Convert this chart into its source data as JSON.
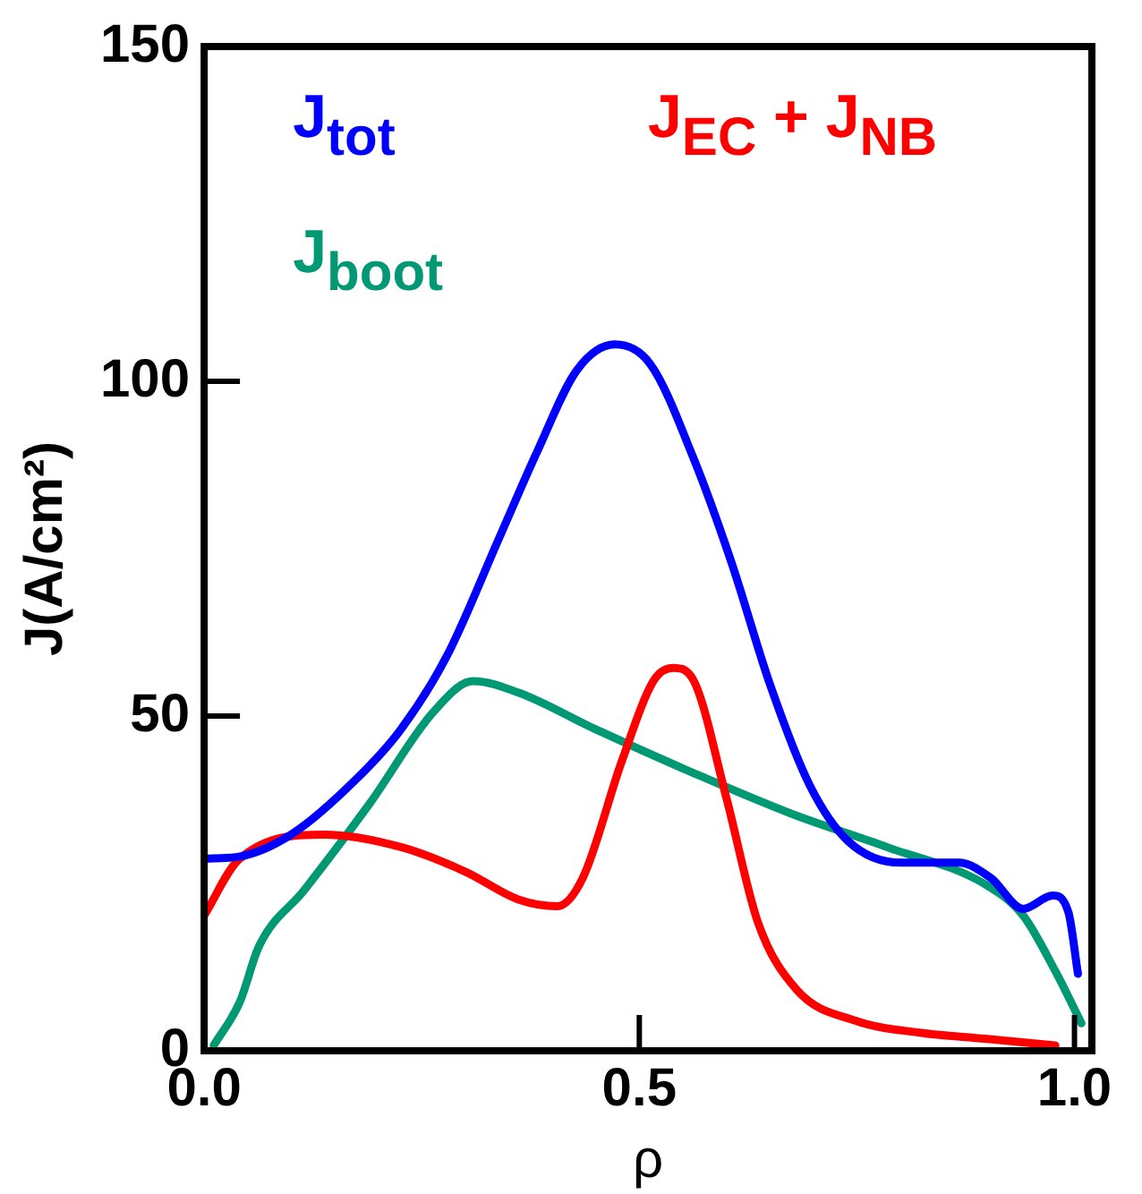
{
  "chart_data": {
    "type": "line",
    "xlabel": "ρ",
    "ylabel": "J(A/cm²)",
    "xlim": [
      0,
      1.02
    ],
    "xticks": [
      {
        "value": 0,
        "label": "0.0"
      },
      0.5,
      {
        "value": 1,
        "label": "1.0"
      }
    ],
    "ylim": [
      0,
      150
    ],
    "yticks": [
      0,
      50,
      100,
      150
    ],
    "grid": false,
    "legend": false,
    "marker": "none",
    "line_style": "solid",
    "series": [
      {
        "name": "J$_{tot}$",
        "color": "#0000ff",
        "x": [
          0,
          0.04,
          0.1,
          0.175,
          0.226,
          0.279,
          0.339,
          0.383,
          0.428,
          0.472,
          0.513,
          0.562,
          0.606,
          0.651,
          0.696,
          0.74,
          0.8,
          0.867,
          0.904,
          0.941,
          0.975,
          0.993,
          1.004
        ],
        "values": [
          28.7,
          29,
          32.3,
          40.6,
          48,
          59,
          76.6,
          89.6,
          101.6,
          105.5,
          102.5,
          88.6,
          72.9,
          54.4,
          39.6,
          31.3,
          28.1,
          28.1,
          25.8,
          21.2,
          23.2,
          20.7,
          11.5
        ]
      },
      {
        "name": "J$_{EC}$ + J$_{NB}$",
        "color": "#ff0000",
        "x": [
          0,
          0.04,
          0.138,
          0.227,
          0.301,
          0.361,
          0.406,
          0.435,
          0.48,
          0.517,
          0.539,
          0.562,
          0.6,
          0.636,
          0.681,
          0.748,
          0.822,
          0.897,
          0.978
        ],
        "values": [
          20.2,
          28.6,
          32.3,
          30.4,
          26.7,
          22.6,
          21.6,
          25.8,
          43.3,
          55.4,
          57.2,
          55.4,
          37.8,
          19.3,
          9.1,
          4.5,
          2.7,
          1.8,
          0.8
        ]
      },
      {
        "name": "J$_{boot}$",
        "color": "#009973",
        "x": [
          0.011,
          0.041,
          0.063,
          0.115,
          0.19,
          0.264,
          0.309,
          0.361,
          0.45,
          0.562,
          0.673,
          0.785,
          0.897,
          0.941,
          0.978,
          1.008
        ],
        "values": [
          0.8,
          7.3,
          15.6,
          24,
          36.9,
          50.7,
          55.2,
          53.5,
          48,
          41.5,
          35.5,
          30.4,
          24.9,
          20.2,
          11.9,
          4.1
        ]
      }
    ]
  }
}
